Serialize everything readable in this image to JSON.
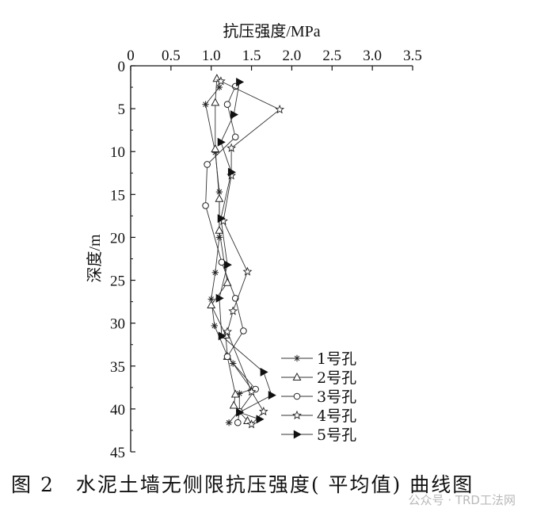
{
  "chart_data": {
    "type": "line",
    "orientation": "depth-profile",
    "xlabel": "抗压强度/MPa",
    "ylabel": "深度/m",
    "xlim": [
      0,
      3.5
    ],
    "ylim": [
      0,
      45
    ],
    "x_ticks": [
      "0",
      "0.5",
      "1.0",
      "1.5",
      "2.0",
      "2.5",
      "3.0",
      "3.5"
    ],
    "y_ticks": [
      "0",
      "5",
      "10",
      "15",
      "20",
      "25",
      "30",
      "35",
      "40",
      "45"
    ],
    "x_axis_position": "top",
    "y_axis_inverted": true,
    "grid": false,
    "legend_position": "bottom-right",
    "series": [
      {
        "name": "1号孔",
        "marker": "asterisk",
        "points": [
          [
            1.1,
            2.5
          ],
          [
            0.93,
            4.5
          ],
          [
            1.05,
            10.1
          ],
          [
            1.1,
            14.7
          ],
          [
            1.1,
            20.0
          ],
          [
            1.05,
            24.1
          ],
          [
            1.0,
            27.2
          ],
          [
            1.04,
            30.3
          ],
          [
            1.2,
            33.8
          ],
          [
            1.27,
            34.7
          ],
          [
            1.5,
            37.7
          ],
          [
            1.35,
            38.2
          ],
          [
            1.35,
            40.2
          ],
          [
            1.22,
            41.6
          ]
        ]
      },
      {
        "name": "2号孔",
        "marker": "triangle",
        "points": [
          [
            1.07,
            1.5
          ],
          [
            1.05,
            4.3
          ],
          [
            1.05,
            9.7
          ],
          [
            1.1,
            15.5
          ],
          [
            1.1,
            19.2
          ],
          [
            1.2,
            25.3
          ],
          [
            1.0,
            27.9
          ],
          [
            1.18,
            31.4
          ],
          [
            1.2,
            33.9
          ],
          [
            1.3,
            38.3
          ],
          [
            1.28,
            39.6
          ],
          [
            1.45,
            41.4
          ]
        ]
      },
      {
        "name": "3号孔",
        "marker": "circle",
        "points": [
          [
            1.3,
            2.4
          ],
          [
            1.2,
            4.5
          ],
          [
            1.3,
            8.3
          ],
          [
            0.95,
            11.5
          ],
          [
            0.93,
            16.3
          ],
          [
            1.13,
            22.9
          ],
          [
            1.3,
            27.1
          ],
          [
            1.4,
            30.9
          ],
          [
            1.2,
            33.9
          ],
          [
            1.55,
            37.7
          ],
          [
            1.35,
            40.3
          ],
          [
            1.33,
            41.6
          ]
        ]
      },
      {
        "name": "4号孔",
        "marker": "star",
        "points": [
          [
            1.12,
            1.8
          ],
          [
            1.85,
            5.1
          ],
          [
            1.25,
            9.6
          ],
          [
            1.25,
            12.8
          ],
          [
            1.15,
            18.1
          ],
          [
            1.45,
            24.0
          ],
          [
            1.27,
            28.6
          ],
          [
            1.2,
            31.0
          ],
          [
            1.5,
            38.0
          ],
          [
            1.65,
            40.3
          ],
          [
            1.5,
            41.8
          ]
        ]
      },
      {
        "name": "5号孔",
        "marker": "filled-triangle-right",
        "points": [
          [
            1.35,
            1.9
          ],
          [
            1.28,
            5.7
          ],
          [
            1.12,
            8.9
          ],
          [
            1.25,
            12.4
          ],
          [
            1.12,
            17.8
          ],
          [
            1.2,
            23.2
          ],
          [
            1.1,
            27.1
          ],
          [
            1.13,
            31.5
          ],
          [
            1.65,
            35.7
          ],
          [
            1.75,
            38.4
          ],
          [
            1.35,
            40.4
          ],
          [
            1.6,
            41.2
          ]
        ]
      }
    ]
  },
  "caption": "图 2　水泥土墙无侧限抗压强度( 平均值) 曲线图",
  "watermark": "公众号 · TRD工法网"
}
